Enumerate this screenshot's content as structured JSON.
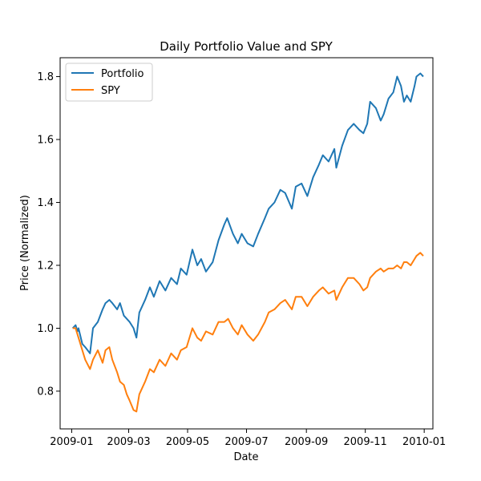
{
  "chart_data": {
    "type": "line",
    "title": "Daily Portfolio Value and SPY",
    "xlabel": "Date",
    "ylabel": "Price (Normalized)",
    "x_range": [
      "2008-12-20",
      "2010-01-10"
    ],
    "ylim": [
      0.68,
      1.86
    ],
    "x_ticks": [
      "2009-01",
      "2009-03",
      "2009-05",
      "2009-07",
      "2009-09",
      "2009-11",
      "2010-01"
    ],
    "x_tick_dates": [
      "2009-01-01",
      "2009-03-01",
      "2009-05-01",
      "2009-07-01",
      "2009-09-01",
      "2009-11-01",
      "2010-01-01"
    ],
    "y_ticks": [
      0.8,
      1.0,
      1.2,
      1.4,
      1.6,
      1.8
    ],
    "y_tick_labels": [
      "0.8",
      "1.0",
      "1.2",
      "1.4",
      "1.6",
      "1.8"
    ],
    "grid": false,
    "legend": "top-left",
    "series": [
      {
        "name": "Portfolio",
        "color": "#1f77b4",
        "points": [
          [
            "2009-01-02",
            1.0
          ],
          [
            "2009-01-05",
            1.01
          ],
          [
            "2009-01-07",
            0.99
          ],
          [
            "2009-01-08",
            1.0
          ],
          [
            "2009-01-12",
            0.95
          ],
          [
            "2009-01-15",
            0.94
          ],
          [
            "2009-01-20",
            0.92
          ],
          [
            "2009-01-23",
            1.0
          ],
          [
            "2009-01-28",
            1.02
          ],
          [
            "2009-02-02",
            1.06
          ],
          [
            "2009-02-05",
            1.08
          ],
          [
            "2009-02-09",
            1.09
          ],
          [
            "2009-02-12",
            1.08
          ],
          [
            "2009-02-17",
            1.06
          ],
          [
            "2009-02-20",
            1.08
          ],
          [
            "2009-02-24",
            1.04
          ],
          [
            "2009-03-02",
            1.02
          ],
          [
            "2009-03-06",
            1.0
          ],
          [
            "2009-03-09",
            0.97
          ],
          [
            "2009-03-12",
            1.05
          ],
          [
            "2009-03-18",
            1.09
          ],
          [
            "2009-03-23",
            1.13
          ],
          [
            "2009-03-27",
            1.1
          ],
          [
            "2009-04-02",
            1.15
          ],
          [
            "2009-04-08",
            1.12
          ],
          [
            "2009-04-14",
            1.16
          ],
          [
            "2009-04-20",
            1.14
          ],
          [
            "2009-04-24",
            1.19
          ],
          [
            "2009-04-30",
            1.17
          ],
          [
            "2009-05-06",
            1.25
          ],
          [
            "2009-05-11",
            1.2
          ],
          [
            "2009-05-15",
            1.22
          ],
          [
            "2009-05-20",
            1.18
          ],
          [
            "2009-05-27",
            1.21
          ],
          [
            "2009-06-02",
            1.28
          ],
          [
            "2009-06-08",
            1.33
          ],
          [
            "2009-06-11",
            1.35
          ],
          [
            "2009-06-17",
            1.3
          ],
          [
            "2009-06-22",
            1.27
          ],
          [
            "2009-06-26",
            1.3
          ],
          [
            "2009-07-02",
            1.27
          ],
          [
            "2009-07-08",
            1.26
          ],
          [
            "2009-07-13",
            1.3
          ],
          [
            "2009-07-20",
            1.35
          ],
          [
            "2009-07-24",
            1.38
          ],
          [
            "2009-07-30",
            1.4
          ],
          [
            "2009-08-05",
            1.44
          ],
          [
            "2009-08-10",
            1.43
          ],
          [
            "2009-08-17",
            1.38
          ],
          [
            "2009-08-21",
            1.45
          ],
          [
            "2009-08-27",
            1.46
          ],
          [
            "2009-09-02",
            1.42
          ],
          [
            "2009-09-08",
            1.48
          ],
          [
            "2009-09-14",
            1.52
          ],
          [
            "2009-09-18",
            1.55
          ],
          [
            "2009-09-24",
            1.53
          ],
          [
            "2009-09-30",
            1.57
          ],
          [
            "2009-10-02",
            1.51
          ],
          [
            "2009-10-08",
            1.58
          ],
          [
            "2009-10-14",
            1.63
          ],
          [
            "2009-10-20",
            1.65
          ],
          [
            "2009-10-26",
            1.63
          ],
          [
            "2009-10-30",
            1.62
          ],
          [
            "2009-11-03",
            1.65
          ],
          [
            "2009-11-06",
            1.72
          ],
          [
            "2009-11-12",
            1.7
          ],
          [
            "2009-11-17",
            1.66
          ],
          [
            "2009-11-20",
            1.68
          ],
          [
            "2009-11-25",
            1.73
          ],
          [
            "2009-11-30",
            1.75
          ],
          [
            "2009-12-04",
            1.8
          ],
          [
            "2009-12-08",
            1.77
          ],
          [
            "2009-12-11",
            1.72
          ],
          [
            "2009-12-14",
            1.74
          ],
          [
            "2009-12-18",
            1.72
          ],
          [
            "2009-12-22",
            1.77
          ],
          [
            "2009-12-24",
            1.8
          ],
          [
            "2009-12-28",
            1.81
          ],
          [
            "2009-12-31",
            1.8
          ]
        ]
      },
      {
        "name": "SPY",
        "color": "#ff7f0e",
        "points": [
          [
            "2009-01-02",
            1.0
          ],
          [
            "2009-01-05",
            1.0
          ],
          [
            "2009-01-07",
            0.98
          ],
          [
            "2009-01-09",
            0.96
          ],
          [
            "2009-01-12",
            0.93
          ],
          [
            "2009-01-15",
            0.9
          ],
          [
            "2009-01-20",
            0.87
          ],
          [
            "2009-01-23",
            0.9
          ],
          [
            "2009-01-28",
            0.93
          ],
          [
            "2009-02-02",
            0.89
          ],
          [
            "2009-02-05",
            0.93
          ],
          [
            "2009-02-09",
            0.94
          ],
          [
            "2009-02-12",
            0.9
          ],
          [
            "2009-02-17",
            0.86
          ],
          [
            "2009-02-20",
            0.83
          ],
          [
            "2009-02-24",
            0.82
          ],
          [
            "2009-02-27",
            0.79
          ],
          [
            "2009-03-02",
            0.77
          ],
          [
            "2009-03-06",
            0.74
          ],
          [
            "2009-03-09",
            0.735
          ],
          [
            "2009-03-12",
            0.79
          ],
          [
            "2009-03-18",
            0.83
          ],
          [
            "2009-03-23",
            0.87
          ],
          [
            "2009-03-27",
            0.86
          ],
          [
            "2009-04-02",
            0.9
          ],
          [
            "2009-04-08",
            0.88
          ],
          [
            "2009-04-14",
            0.92
          ],
          [
            "2009-04-20",
            0.9
          ],
          [
            "2009-04-24",
            0.93
          ],
          [
            "2009-04-30",
            0.94
          ],
          [
            "2009-05-06",
            1.0
          ],
          [
            "2009-05-11",
            0.97
          ],
          [
            "2009-05-15",
            0.96
          ],
          [
            "2009-05-20",
            0.99
          ],
          [
            "2009-05-27",
            0.98
          ],
          [
            "2009-06-02",
            1.02
          ],
          [
            "2009-06-08",
            1.02
          ],
          [
            "2009-06-12",
            1.03
          ],
          [
            "2009-06-17",
            1.0
          ],
          [
            "2009-06-22",
            0.98
          ],
          [
            "2009-06-26",
            1.01
          ],
          [
            "2009-07-02",
            0.98
          ],
          [
            "2009-07-08",
            0.96
          ],
          [
            "2009-07-13",
            0.98
          ],
          [
            "2009-07-20",
            1.02
          ],
          [
            "2009-07-24",
            1.05
          ],
          [
            "2009-07-30",
            1.06
          ],
          [
            "2009-08-05",
            1.08
          ],
          [
            "2009-08-10",
            1.09
          ],
          [
            "2009-08-17",
            1.06
          ],
          [
            "2009-08-21",
            1.1
          ],
          [
            "2009-08-27",
            1.1
          ],
          [
            "2009-09-02",
            1.07
          ],
          [
            "2009-09-08",
            1.1
          ],
          [
            "2009-09-14",
            1.12
          ],
          [
            "2009-09-18",
            1.13
          ],
          [
            "2009-09-24",
            1.11
          ],
          [
            "2009-09-30",
            1.12
          ],
          [
            "2009-10-02",
            1.09
          ],
          [
            "2009-10-08",
            1.13
          ],
          [
            "2009-10-14",
            1.16
          ],
          [
            "2009-10-20",
            1.16
          ],
          [
            "2009-10-26",
            1.14
          ],
          [
            "2009-10-30",
            1.12
          ],
          [
            "2009-11-03",
            1.13
          ],
          [
            "2009-11-06",
            1.16
          ],
          [
            "2009-11-12",
            1.18
          ],
          [
            "2009-11-17",
            1.19
          ],
          [
            "2009-11-20",
            1.18
          ],
          [
            "2009-11-25",
            1.19
          ],
          [
            "2009-11-30",
            1.19
          ],
          [
            "2009-12-04",
            1.2
          ],
          [
            "2009-12-08",
            1.19
          ],
          [
            "2009-12-11",
            1.21
          ],
          [
            "2009-12-14",
            1.21
          ],
          [
            "2009-12-18",
            1.2
          ],
          [
            "2009-12-22",
            1.22
          ],
          [
            "2009-12-24",
            1.23
          ],
          [
            "2009-12-28",
            1.24
          ],
          [
            "2009-12-31",
            1.23
          ]
        ]
      }
    ]
  }
}
